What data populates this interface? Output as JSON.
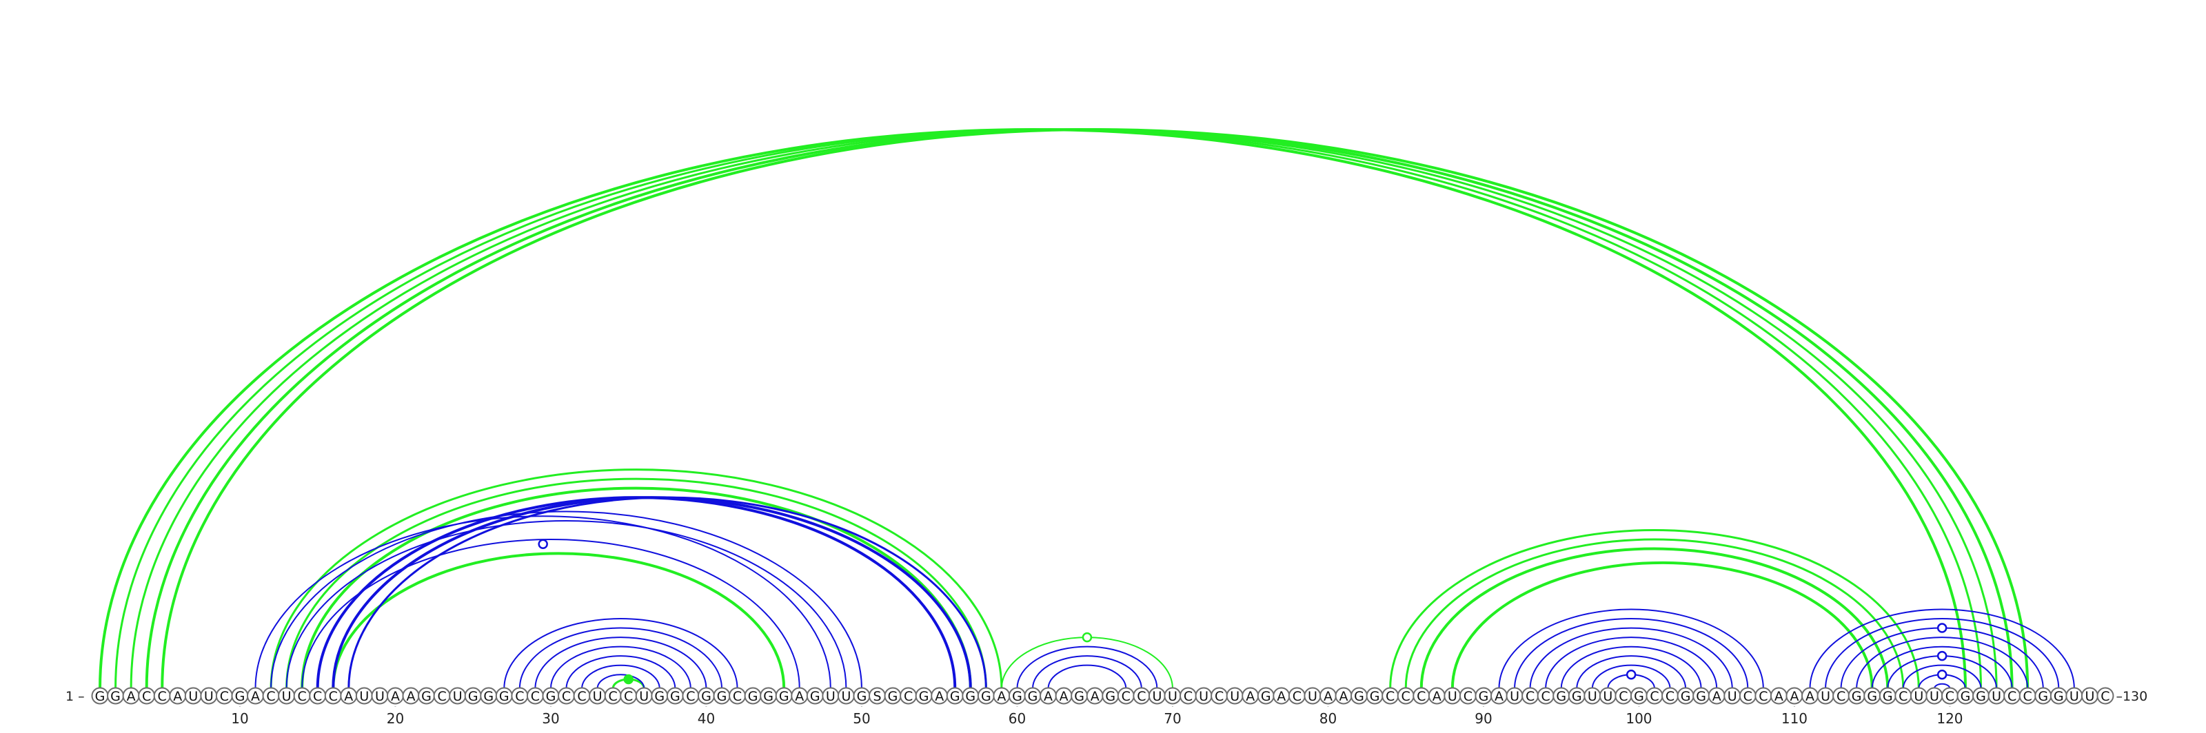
{
  "sequence": "GGACCAUUCGACUCCCAUUAAGCUGGGCCGCCUCCUGGCGGCGGGAGUUGSGCGAGGGAGGAAGAGCCUUCUCUAGACUAAGGCCCAUCGAUCCGGUUCGCCGGAUCCAAAUCGGGCUUCGGUCCGGUUC",
  "labels": {
    "start": "1 –",
    "end": "–130"
  },
  "ticks": [
    10,
    20,
    30,
    40,
    50,
    60,
    70,
    80,
    90,
    100,
    110,
    120
  ],
  "colors": {
    "green": "#22ee22",
    "blue": "#1010dd"
  },
  "arcs": [
    {
      "i": 1,
      "j": 121,
      "color": "green",
      "width": 4
    },
    {
      "i": 2,
      "j": 122,
      "color": "green",
      "width": 3
    },
    {
      "i": 3,
      "j": 123,
      "color": "green",
      "width": 3
    },
    {
      "i": 4,
      "j": 124,
      "color": "green",
      "width": 4
    },
    {
      "i": 5,
      "j": 125,
      "color": "green",
      "width": 4
    },
    {
      "i": 12,
      "j": 59,
      "color": "green",
      "width": 3
    },
    {
      "i": 13,
      "j": 58,
      "color": "green",
      "width": 3
    },
    {
      "i": 14,
      "j": 57,
      "color": "green",
      "width": 4
    },
    {
      "i": 16,
      "j": 45,
      "color": "green",
      "width": 4
    },
    {
      "i": 34,
      "j": 36,
      "color": "green",
      "width": 3
    },
    {
      "i": 59,
      "j": 70,
      "color": "green",
      "width": 2
    },
    {
      "i": 84,
      "j": 118,
      "color": "green",
      "width": 3
    },
    {
      "i": 85,
      "j": 117,
      "color": "green",
      "width": 3
    },
    {
      "i": 86,
      "j": 116,
      "color": "green",
      "width": 4
    },
    {
      "i": 88,
      "j": 115,
      "color": "green",
      "width": 4
    },
    {
      "i": 11,
      "j": 48,
      "color": "blue",
      "width": 2
    },
    {
      "i": 12,
      "j": 50,
      "color": "blue",
      "width": 2
    },
    {
      "i": 13,
      "j": 49,
      "color": "blue",
      "width": 2
    },
    {
      "i": 14,
      "j": 46,
      "color": "blue",
      "width": 2
    },
    {
      "i": 15,
      "j": 56,
      "color": "blue",
      "width": 4
    },
    {
      "i": 16,
      "j": 57,
      "color": "blue",
      "width": 4
    },
    {
      "i": 17,
      "j": 58,
      "color": "blue",
      "width": 3
    },
    {
      "i": 27,
      "j": 42,
      "color": "blue",
      "width": 2
    },
    {
      "i": 28,
      "j": 41,
      "color": "blue",
      "width": 2
    },
    {
      "i": 29,
      "j": 40,
      "color": "blue",
      "width": 2
    },
    {
      "i": 30,
      "j": 39,
      "color": "blue",
      "width": 2
    },
    {
      "i": 31,
      "j": 38,
      "color": "blue",
      "width": 2
    },
    {
      "i": 32,
      "j": 37,
      "color": "blue",
      "width": 2
    },
    {
      "i": 33,
      "j": 36,
      "color": "blue",
      "width": 2
    },
    {
      "i": 60,
      "j": 69,
      "color": "blue",
      "width": 2
    },
    {
      "i": 61,
      "j": 68,
      "color": "blue",
      "width": 2
    },
    {
      "i": 62,
      "j": 67,
      "color": "blue",
      "width": 2
    },
    {
      "i": 91,
      "j": 108,
      "color": "blue",
      "width": 2
    },
    {
      "i": 92,
      "j": 107,
      "color": "blue",
      "width": 2
    },
    {
      "i": 93,
      "j": 106,
      "color": "blue",
      "width": 2
    },
    {
      "i": 94,
      "j": 105,
      "color": "blue",
      "width": 2
    },
    {
      "i": 95,
      "j": 104,
      "color": "blue",
      "width": 2
    },
    {
      "i": 96,
      "j": 103,
      "color": "blue",
      "width": 2
    },
    {
      "i": 97,
      "j": 102,
      "color": "blue",
      "width": 2
    },
    {
      "i": 98,
      "j": 101,
      "color": "blue",
      "width": 2
    },
    {
      "i": 111,
      "j": 128,
      "color": "blue",
      "width": 2
    },
    {
      "i": 112,
      "j": 127,
      "color": "blue",
      "width": 2
    },
    {
      "i": 113,
      "j": 126,
      "color": "blue",
      "width": 2
    },
    {
      "i": 114,
      "j": 125,
      "color": "blue",
      "width": 2
    },
    {
      "i": 115,
      "j": 124,
      "color": "blue",
      "width": 2
    },
    {
      "i": 116,
      "j": 123,
      "color": "blue",
      "width": 2
    },
    {
      "i": 117,
      "j": 122,
      "color": "blue",
      "width": 2
    },
    {
      "i": 118,
      "j": 121,
      "color": "blue",
      "width": 2
    },
    {
      "i": 119,
      "j": 120,
      "color": "blue",
      "width": 2
    }
  ],
  "markers": [
    {
      "i": 14,
      "j": 45,
      "color": "blue",
      "filled": false
    },
    {
      "i": 34,
      "j": 36,
      "color": "green",
      "filled": true
    },
    {
      "i": 59,
      "j": 70,
      "color": "green",
      "filled": false
    },
    {
      "i": 98,
      "j": 101,
      "color": "blue",
      "filled": false
    },
    {
      "i": 113,
      "j": 126,
      "color": "blue",
      "filled": false
    },
    {
      "i": 116,
      "j": 123,
      "color": "blue",
      "filled": false
    },
    {
      "i": 118,
      "j": 121,
      "color": "blue",
      "filled": false
    }
  ]
}
